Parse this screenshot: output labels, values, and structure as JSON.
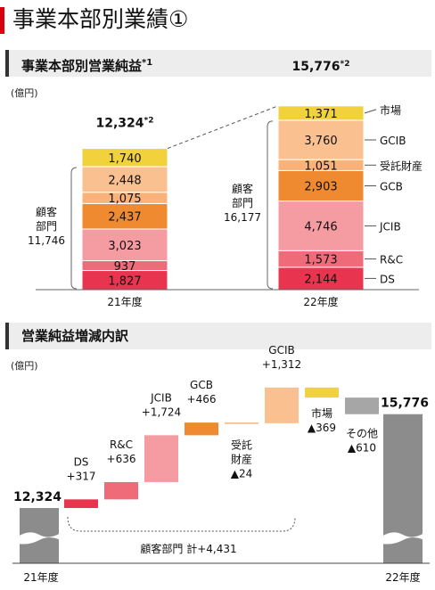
{
  "page_title": "事業本部別業績①",
  "section1": {
    "title": "事業本部別営業純益",
    "title_note": "*1",
    "unit": "(億円)"
  },
  "section2": {
    "title": "営業純益増減内訳",
    "unit": "(億円)"
  },
  "colors": {
    "accent": "#d7000f",
    "DS": "#e8344e",
    "RC": "#f06b7a",
    "JCIB": "#f59ba2",
    "GCB": "#f08a30",
    "受託財産": "#f9b27a",
    "GCIB": "#fbc08f",
    "市場": "#f2d23c",
    "その他": "#a6a6a6",
    "total": "#8c8c8c"
  },
  "chart_data": [
    {
      "type": "bar",
      "stacked": true,
      "title": "事業本部別営業純益",
      "categories": [
        "21年度",
        "22年度"
      ],
      "series": [
        {
          "name": "DS",
          "values": [
            1827,
            2144
          ],
          "labels": [
            "1,827",
            "2,144"
          ],
          "color_key": "DS"
        },
        {
          "name": "R&C",
          "values": [
            937,
            1573
          ],
          "labels": [
            "937",
            "1,573"
          ],
          "color_key": "RC"
        },
        {
          "name": "JCIB",
          "values": [
            3023,
            4746
          ],
          "labels": [
            "3,023",
            "4,746"
          ],
          "color_key": "JCIB"
        },
        {
          "name": "GCB",
          "values": [
            2437,
            2903
          ],
          "labels": [
            "2,437",
            "2,903"
          ],
          "color_key": "GCB"
        },
        {
          "name": "受託財産",
          "values": [
            1075,
            1051
          ],
          "labels": [
            "1,075",
            "1,051"
          ],
          "color_key": "受託財産"
        },
        {
          "name": "GCIB",
          "values": [
            2448,
            3760
          ],
          "labels": [
            "2,448",
            "3,760"
          ],
          "color_key": "GCIB"
        },
        {
          "name": "市場",
          "values": [
            1740,
            1371
          ],
          "labels": [
            "1,740",
            "1,371"
          ],
          "color_key": "市場"
        }
      ],
      "totals": [
        {
          "label": "12,324",
          "note": "*2"
        },
        {
          "label": "15,776",
          "note": "*2"
        }
      ],
      "customer_segment": {
        "line1": "顧客",
        "line2": "部門",
        "values": [
          "11,746",
          "16,177"
        ]
      }
    },
    {
      "type": "bar",
      "waterfall": true,
      "title": "営業純益増減内訳",
      "start": {
        "label": "21年度",
        "value": 12324,
        "text": "12,324"
      },
      "end": {
        "label": "22年度",
        "value": 15776,
        "text": "15,776"
      },
      "steps": [
        {
          "name": "DS",
          "delta": 317,
          "text": "+317",
          "color_key": "DS"
        },
        {
          "name": "R&C",
          "delta": 636,
          "text": "+636",
          "color_key": "RC"
        },
        {
          "name": "JCIB",
          "delta": 1724,
          "text": "+1,724",
          "color_key": "JCIB"
        },
        {
          "name": "GCB",
          "delta": 466,
          "text": "+466",
          "color_key": "GCB"
        },
        {
          "name": "受託財産",
          "name_lines": [
            "受託",
            "財産"
          ],
          "delta": -24,
          "text": "▲24",
          "color_key": "受託財産"
        },
        {
          "name": "GCIB",
          "delta": 1312,
          "text": "+1,312",
          "color_key": "GCIB"
        },
        {
          "name": "市場",
          "delta": -369,
          "text": "▲369",
          "color_key": "市場"
        },
        {
          "name": "その他",
          "delta": -610,
          "text": "▲610",
          "color_key": "その他"
        }
      ],
      "bracket": {
        "label": "顧客部門 計+4,431"
      }
    }
  ]
}
